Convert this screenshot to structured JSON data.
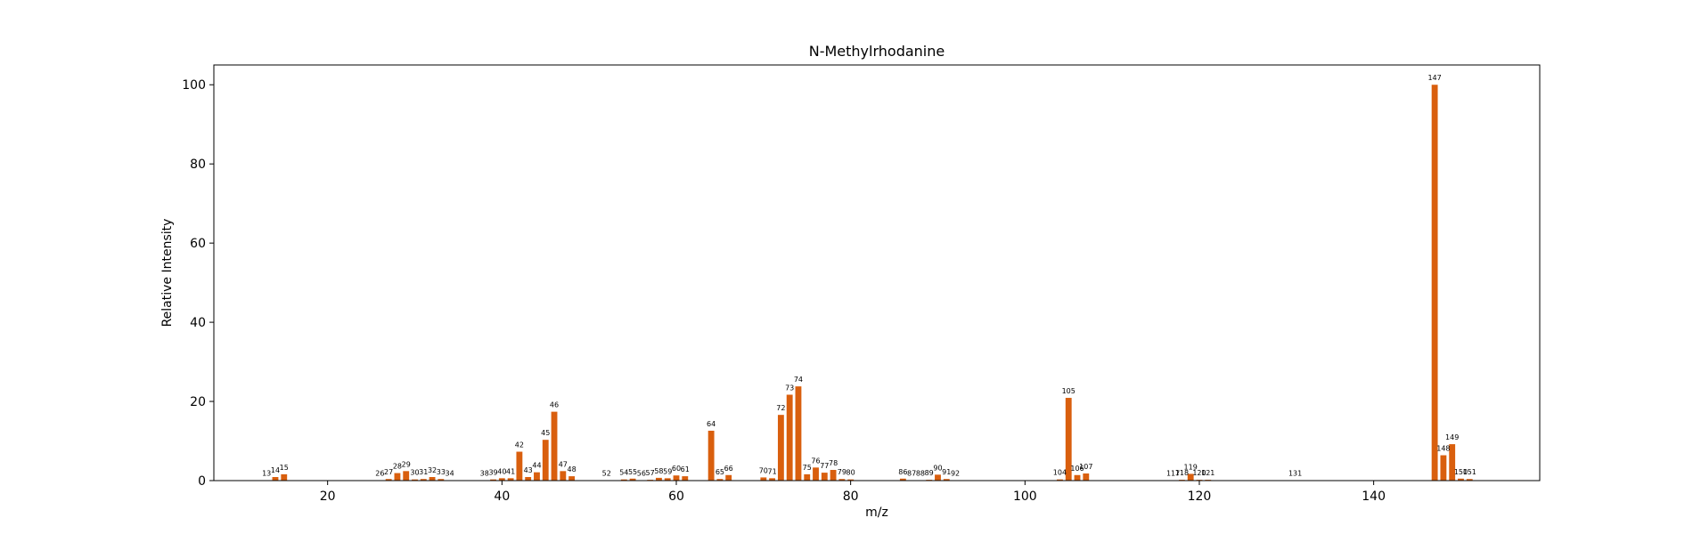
{
  "chart_data": {
    "type": "bar",
    "title": "N-Methylrhodanine",
    "xlabel": "m/z",
    "ylabel": "Relative Intensity",
    "xlim": [
      6.95,
      159.05
    ],
    "ylim": [
      0,
      105
    ],
    "xticks": [
      20,
      40,
      60,
      80,
      100,
      120,
      140
    ],
    "yticks": [
      0,
      20,
      40,
      60,
      80,
      100
    ],
    "bar_color": "#D95F0E",
    "grid": false,
    "legend": "none",
    "series": [
      {
        "x": [
          13,
          14,
          15,
          26,
          27,
          28,
          29,
          30,
          31,
          32,
          33,
          34,
          38,
          39,
          40,
          41,
          42,
          43,
          44,
          45,
          46,
          47,
          48,
          52,
          54,
          55,
          56,
          57,
          58,
          59,
          60,
          61,
          64,
          65,
          66,
          70,
          71,
          72,
          73,
          74,
          75,
          76,
          77,
          78,
          79,
          80,
          86,
          87,
          88,
          89,
          90,
          91,
          92,
          104,
          105,
          106,
          107,
          117,
          118,
          119,
          120,
          121,
          131,
          147,
          148,
          149,
          150,
          151
        ],
        "values": [
          0.1,
          0.9,
          1.6,
          0.1,
          0.4,
          1.9,
          2.4,
          0.3,
          0.4,
          0.9,
          0.4,
          0.1,
          0.1,
          0.3,
          0.6,
          0.6,
          7.3,
          0.9,
          2.1,
          10.3,
          17.4,
          2.4,
          1.1,
          0.1,
          0.3,
          0.5,
          0.1,
          0.2,
          0.7,
          0.6,
          1.3,
          1.1,
          12.6,
          0.4,
          1.4,
          0.8,
          0.6,
          16.6,
          21.7,
          23.8,
          1.6,
          3.3,
          2.0,
          2.7,
          0.4,
          0.3,
          0.5,
          0.1,
          0.1,
          0.2,
          1.5,
          0.4,
          0.1,
          0.3,
          20.9,
          1.4,
          1.8,
          0.1,
          0.2,
          1.7,
          0.2,
          0.2,
          0.1,
          100.0,
          6.4,
          9.2,
          0.5,
          0.4
        ]
      }
    ]
  }
}
